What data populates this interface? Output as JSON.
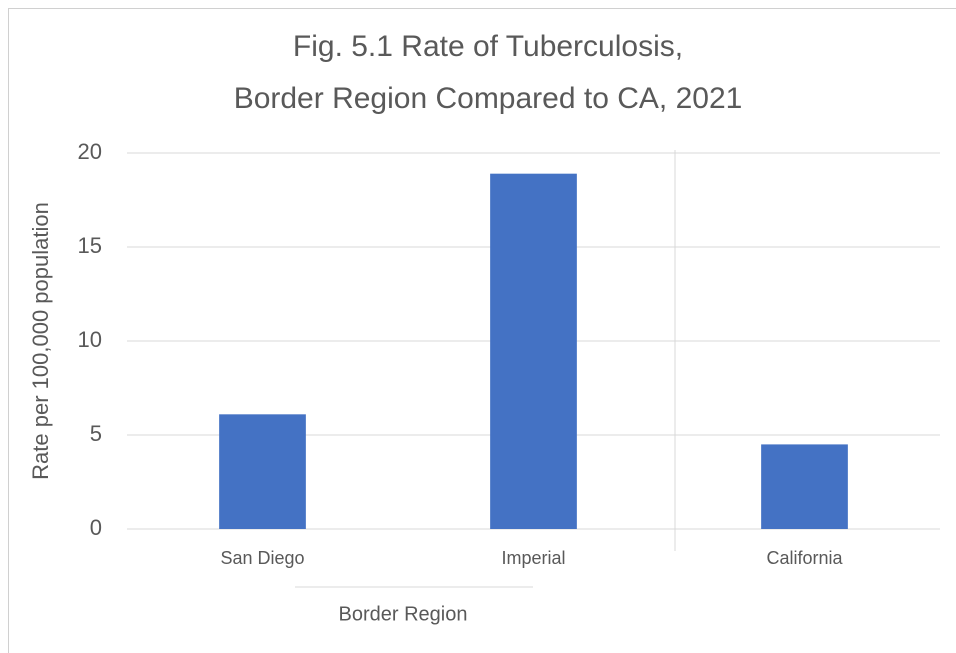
{
  "chart_data": {
    "type": "bar",
    "title": [
      "Fig. 5.1 Rate of Tuberculosis,",
      "Border Region Compared to CA, 2021"
    ],
    "y_label": "Rate per 100,000 population",
    "x_group_label": "Border Region",
    "categories": [
      "San Diego",
      "Imperial",
      "California"
    ],
    "values": [
      6.1,
      18.9,
      4.5
    ],
    "color": "#4472c4",
    "ylim": [
      0,
      20
    ],
    "yticks": [
      0,
      5,
      10,
      15,
      20
    ],
    "grid": true
  }
}
